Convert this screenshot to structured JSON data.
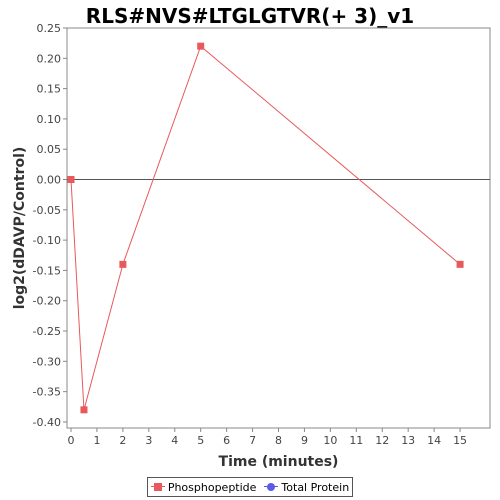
{
  "chart_data": {
    "type": "line",
    "title": "RLS#NVS#LTGLGTVR(+ 3)_v1",
    "xlabel": "Time (minutes)",
    "ylabel": "log2(dDAVP/Control)",
    "xlim": [
      0,
      16
    ],
    "ylim": [
      -0.41,
      0.25
    ],
    "x_ticks": [
      0,
      1,
      2,
      3,
      4,
      5,
      6,
      7,
      8,
      9,
      10,
      11,
      12,
      13,
      14,
      15
    ],
    "y_ticks": [
      0.25,
      0.2,
      0.15,
      0.1,
      0.05,
      0.0,
      -0.05,
      -0.1,
      -0.15,
      -0.2,
      -0.25,
      -0.3,
      -0.35,
      -0.4
    ],
    "y_tick_labels": [
      "0.25",
      "0.20",
      "0.15",
      "0.10",
      "0.05",
      "0.00",
      "-0.05",
      "-0.10",
      "-0.15",
      "-0.20",
      "-0.25",
      "-0.30",
      "-0.35",
      "-0.40"
    ],
    "grid": false,
    "zero_line": true,
    "legend_position": "bottom",
    "series": [
      {
        "name": "Phosphopeptide",
        "color": "#e8595c",
        "marker": "square",
        "x": [
          0,
          0.5,
          2,
          5,
          15
        ],
        "y": [
          0.0,
          -0.38,
          -0.14,
          0.22,
          -0.14
        ]
      },
      {
        "name": "Total Protein",
        "color": "#5a5ae8",
        "marker": "circle",
        "x": [],
        "y": []
      }
    ]
  }
}
